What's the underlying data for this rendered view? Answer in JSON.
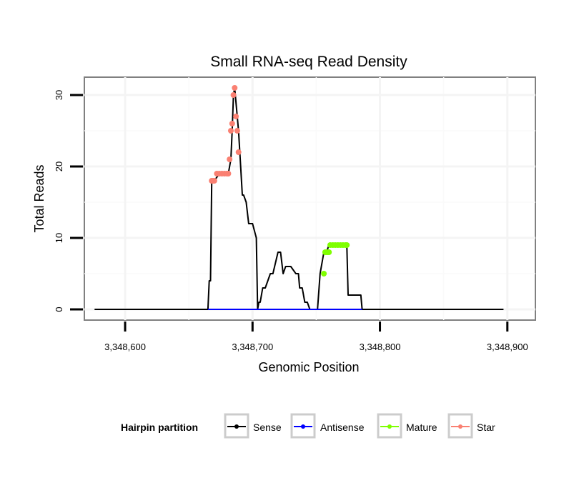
{
  "chart_data": {
    "type": "line",
    "title": "Small RNA-seq Read Density",
    "xlabel": "Genomic Position",
    "ylabel": "Total Reads",
    "xlim": [
      3348568,
      3348922
    ],
    "ylim": [
      -1.5,
      32.5
    ],
    "x_ticks": [
      3348600,
      3348700,
      3348800,
      3348900
    ],
    "x_tick_labels": [
      "3,348,600",
      "3,348,700",
      "3,348,800",
      "3,348,900"
    ],
    "y_ticks": [
      0,
      10,
      20,
      30
    ],
    "y_tick_labels": [
      "0",
      "10",
      "20",
      "30"
    ],
    "grid": true,
    "legend": {
      "title": "Hairpin partition",
      "position": "bottom",
      "entries": [
        {
          "label": "Sense",
          "color": "#000000"
        },
        {
          "label": "Antisense",
          "color": "#0000ff"
        },
        {
          "label": "Mature",
          "color": "#7fff00"
        },
        {
          "label": "Star",
          "color": "#fa8072"
        }
      ]
    },
    "series": [
      {
        "name": "Sense",
        "color": "#000000",
        "x": [
          3348576,
          3348665,
          3348666,
          3348667,
          3348668,
          3348670,
          3348674,
          3348678,
          3348681,
          3348683,
          3348684,
          3348685,
          3348686,
          3348688,
          3348689,
          3348690,
          3348692,
          3348693,
          3348695,
          3348697,
          3348700,
          3348703,
          3348704,
          3348705,
          3348706,
          3348708,
          3348710,
          3348714,
          3348716,
          3348720,
          3348722,
          3348724,
          3348726,
          3348727,
          3348728,
          3348730,
          3348734,
          3348736,
          3348737,
          3348739,
          3348741,
          3348743,
          3348745,
          3348747,
          3348748,
          3348751,
          3348753,
          3348756,
          3348757,
          3348758,
          3348760,
          3348762,
          3348764,
          3348766,
          3348768,
          3348770,
          3348772,
          3348774,
          3348775,
          3348776,
          3348778,
          3348780,
          3348782,
          3348784,
          3348785,
          3348786,
          3348897
        ],
        "y": [
          0,
          0,
          4,
          4,
          18,
          18,
          19,
          19,
          19,
          21,
          25,
          30,
          31,
          27,
          25,
          22,
          16,
          16,
          15,
          12,
          12,
          10,
          0,
          1,
          1,
          3,
          3,
          5,
          5,
          8,
          8,
          5,
          6,
          6,
          6,
          6,
          5,
          5,
          3,
          3,
          1,
          1,
          0,
          0,
          0,
          0,
          5,
          8,
          8,
          8,
          9,
          9,
          9,
          9,
          9,
          9,
          9,
          9,
          2,
          2,
          2,
          2,
          2,
          2,
          2,
          0,
          0
        ]
      },
      {
        "name": "Antisense",
        "color": "#0000ff",
        "x": [
          3348665,
          3348786
        ],
        "y": [
          0,
          0
        ]
      },
      {
        "name": "Mature",
        "color": "#7fff00",
        "x": [
          3348756,
          3348757,
          3348758,
          3348759,
          3348760,
          3348761,
          3348763,
          3348765,
          3348767,
          3348769,
          3348771,
          3348773,
          3348774
        ],
        "y": [
          5,
          8,
          8,
          8,
          8,
          9,
          9,
          9,
          9,
          9,
          9,
          9,
          9
        ]
      },
      {
        "name": "Star",
        "color": "#fa8072",
        "x": [
          3348668,
          3348669,
          3348670,
          3348672,
          3348674,
          3348676,
          3348678,
          3348680,
          3348681,
          3348682,
          3348683,
          3348684,
          3348685,
          3348686,
          3348687,
          3348688,
          3348689
        ],
        "y": [
          18,
          18,
          18,
          19,
          19,
          19,
          19,
          19,
          19,
          21,
          25,
          26,
          30,
          31,
          27,
          25,
          22
        ]
      }
    ]
  }
}
